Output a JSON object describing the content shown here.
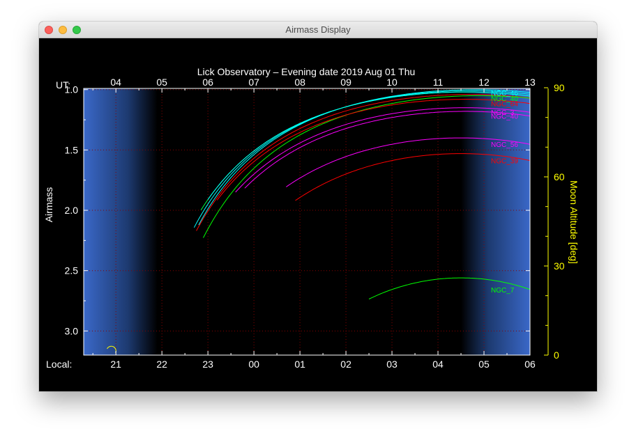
{
  "window": {
    "title": "Airmass Display"
  },
  "chart_data": {
    "type": "line",
    "title": "Lick Observatory – Evening date 2019 Aug 01  Thu",
    "ylabel": "Airmass",
    "y2label": "Moon Altitude [deg]",
    "ut_label": "UT:",
    "local_label": "Local:",
    "ut_ticks": [
      "04",
      "05",
      "06",
      "07",
      "08",
      "09",
      "10",
      "11",
      "12",
      "13"
    ],
    "local_ticks": [
      "21",
      "22",
      "23",
      "00",
      "01",
      "02",
      "03",
      "04",
      "05",
      "06"
    ],
    "yticks": [
      "1.0",
      "1.5",
      "2.0",
      "2.5",
      "3.0"
    ],
    "y2ticks": [
      "90",
      "60",
      "30",
      "0"
    ],
    "xlim_ut_hours": [
      3.3,
      13.0
    ],
    "ylim_airmass": [
      0.99,
      3.2
    ],
    "y2lim_deg": [
      0,
      90
    ],
    "twilight": {
      "evening_end_ut": 4.9,
      "morning_start_ut": 11.5
    },
    "grid": true,
    "colors": {
      "moon": "#ffff00",
      "axes": "#ffffff",
      "grid": "#8b0000",
      "night_edge": "#3a68c8"
    },
    "series": [
      {
        "name": "NGC_46",
        "color": "#00ffff",
        "transit_ut": 11.8,
        "min_airmass": 1.0,
        "start_ut": 5.8,
        "labeled": true
      },
      {
        "name": "",
        "color": "#00ffff",
        "transit_ut": 11.7,
        "min_airmass": 1.01,
        "start_ut": 5.7,
        "labeled": false
      },
      {
        "name": "",
        "color": "#ff0000",
        "transit_ut": 11.7,
        "min_airmass": 1.04,
        "start_ut": 5.75,
        "labeled": false
      },
      {
        "name": "",
        "color": "#00ff44",
        "transit_ut": 11.6,
        "min_airmass": 1.02,
        "start_ut": 5.85,
        "labeled": false
      },
      {
        "name": "NGC_40",
        "color": "#00ff00",
        "transit_ut": 11.9,
        "min_airmass": 1.05,
        "start_ut": 5.9,
        "labeled": true
      },
      {
        "name": "",
        "color": "#00ffff",
        "transit_ut": 11.6,
        "min_airmass": 1.02,
        "start_ut": 6.0,
        "labeled": false
      },
      {
        "name": "NGC_64",
        "color": "#ff0000",
        "transit_ut": 11.6,
        "min_airmass": 1.08,
        "start_ut": 6.2,
        "labeled": true
      },
      {
        "name": "NGC_3",
        "color": "#ff00ff",
        "transit_ut": 11.6,
        "min_airmass": 1.15,
        "start_ut": 6.6,
        "labeled": true
      },
      {
        "name": "NGC_40",
        "color": "#ff00ff",
        "transit_ut": 11.6,
        "min_airmass": 1.18,
        "start_ut": 6.8,
        "labeled": true
      },
      {
        "name": "NGC_56",
        "color": "#ff00ff",
        "transit_ut": 11.5,
        "min_airmass": 1.4,
        "start_ut": 7.7,
        "labeled": true
      },
      {
        "name": "NGC_39",
        "color": "#ff0000",
        "transit_ut": 11.5,
        "min_airmass": 1.53,
        "start_ut": 7.9,
        "labeled": true
      },
      {
        "name": "NGC_7",
        "color": "#00ff00",
        "transit_ut": 11.5,
        "min_airmass": 2.56,
        "start_ut": 9.5,
        "labeled": true
      }
    ],
    "moon": {
      "set_ut": 3.9,
      "altitude_deg": 0
    }
  }
}
